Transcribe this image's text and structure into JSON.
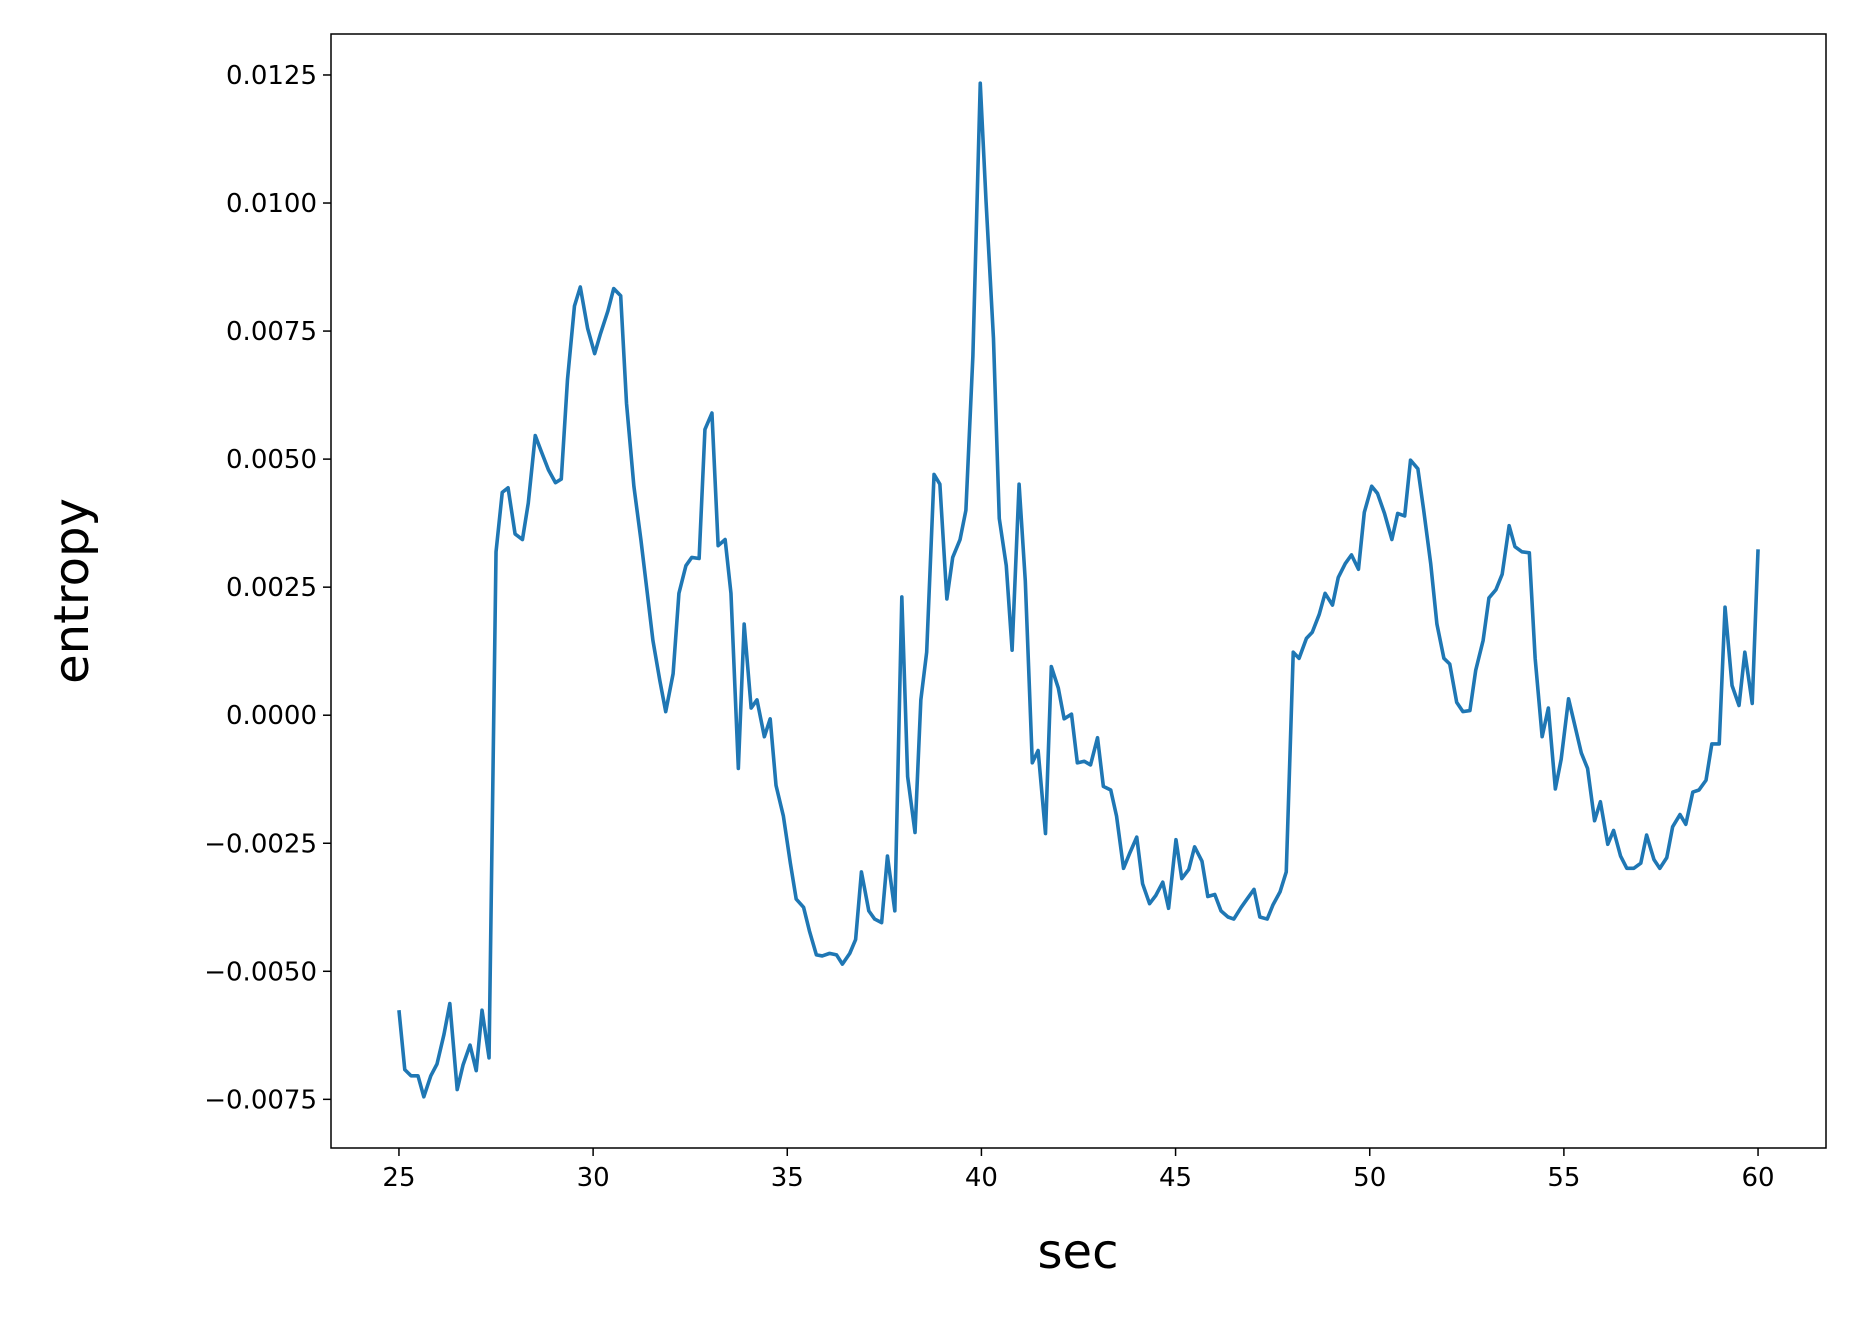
{
  "chart_data": {
    "type": "line",
    "x_label": "sec",
    "y_label": "entropy",
    "color": "#1f77b4",
    "xlim": [
      23.25,
      61.75
    ],
    "xticks": [
      25,
      30,
      35,
      40,
      45,
      50,
      55,
      60
    ],
    "ylim": [
      -0.00845,
      0.0133
    ],
    "yticks": [
      {
        "value": -0.0075,
        "label": "−0.0075"
      },
      {
        "value": -0.005,
        "label": "−0.0050"
      },
      {
        "value": -0.0025,
        "label": "−0.0025"
      },
      {
        "value": 0,
        "label": "0.0000"
      },
      {
        "value": 0.0025,
        "label": "0.0025"
      },
      {
        "value": 0.005,
        "label": "0.0050"
      },
      {
        "value": 0.0075,
        "label": "0.0075"
      },
      {
        "value": 0.01,
        "label": "0.0100"
      },
      {
        "value": 0.0125,
        "label": "0.0125"
      }
    ],
    "x": [
      25.0,
      25.15,
      25.31,
      25.49,
      25.64,
      25.82,
      25.98,
      26.16,
      26.31,
      26.5,
      26.65,
      26.83,
      26.99,
      27.14,
      27.32,
      27.5,
      27.66,
      27.81,
      27.99,
      28.18,
      28.33,
      28.51,
      28.67,
      28.85,
      29.03,
      29.18,
      29.34,
      29.52,
      29.67,
      29.86,
      30.04,
      30.19,
      30.38,
      30.53,
      30.71,
      30.86,
      31.05,
      31.23,
      31.38,
      31.54,
      31.72,
      31.87,
      32.06,
      32.21,
      32.39,
      32.54,
      32.73,
      32.88,
      33.06,
      33.22,
      33.4,
      33.55,
      33.74,
      33.89,
      34.07,
      34.22,
      34.41,
      34.56,
      34.71,
      34.9,
      35.08,
      35.23,
      35.42,
      35.57,
      35.75,
      35.9,
      36.09,
      36.27,
      36.42,
      36.61,
      36.76,
      36.91,
      37.1,
      37.25,
      37.43,
      37.58,
      37.77,
      37.95,
      38.1,
      38.29,
      38.44,
      38.59,
      38.78,
      38.93,
      39.11,
      39.26,
      39.45,
      39.6,
      39.78,
      39.97,
      40.12,
      40.31,
      40.46,
      40.64,
      40.79,
      40.97,
      41.13,
      41.31,
      41.46,
      41.65,
      41.8,
      41.98,
      42.13,
      42.32,
      42.47,
      42.65,
      42.81,
      42.99,
      43.14,
      43.33,
      43.48,
      43.66,
      43.81,
      44.0,
      44.15,
      44.33,
      44.49,
      44.67,
      44.82,
      45.01,
      45.16,
      45.34,
      45.49,
      45.68,
      45.83,
      46.01,
      46.17,
      46.35,
      46.5,
      46.69,
      46.84,
      47.02,
      47.17,
      47.36,
      47.51,
      47.69,
      47.85,
      48.03,
      48.18,
      48.37,
      48.52,
      48.7,
      48.85,
      49.04,
      49.19,
      49.37,
      49.53,
      49.71,
      49.86,
      50.05,
      50.2,
      50.38,
      50.57,
      50.72,
      50.9,
      51.05,
      51.24,
      51.39,
      51.57,
      51.73,
      51.91,
      52.06,
      52.24,
      52.4,
      52.58,
      52.73,
      52.92,
      53.07,
      53.25,
      53.41,
      53.59,
      53.74,
      53.92,
      54.11,
      54.26,
      54.44,
      54.6,
      54.78,
      54.93,
      55.12,
      55.27,
      55.45,
      55.61,
      55.79,
      55.94,
      56.13,
      56.28,
      56.46,
      56.62,
      56.8,
      56.98,
      57.13,
      57.32,
      57.47,
      57.65,
      57.8,
      57.99,
      58.14,
      58.32,
      58.48,
      58.66,
      58.81,
      59.0,
      59.15,
      59.33,
      59.51,
      59.66,
      59.85,
      60.0
    ],
    "values": [
      -0.00576,
      -0.00692,
      -0.00704,
      -0.00704,
      -0.00745,
      -0.00704,
      -0.00681,
      -0.00623,
      -0.00563,
      -0.00731,
      -0.00683,
      -0.00644,
      -0.00694,
      -0.00576,
      -0.00669,
      0.00319,
      0.00435,
      0.00444,
      0.00354,
      0.00343,
      0.00414,
      0.00546,
      0.00514,
      0.00479,
      0.00454,
      0.00461,
      0.00655,
      0.00799,
      0.00836,
      0.00755,
      0.00706,
      0.00745,
      0.00789,
      0.00833,
      0.00819,
      0.00609,
      0.00447,
      0.00343,
      0.00248,
      0.00146,
      0.00067,
      7e-05,
      0.00081,
      0.00238,
      0.00292,
      0.00308,
      0.00306,
      0.00558,
      0.0059,
      0.00331,
      0.00343,
      0.00238,
      -0.00104,
      0.00178,
      0.00014,
      0.0003,
      -0.00042,
      -7e-05,
      -0.00137,
      -0.00197,
      -0.00289,
      -0.00359,
      -0.00375,
      -0.00421,
      -0.00468,
      -0.0047,
      -0.00465,
      -0.00468,
      -0.00486,
      -0.00465,
      -0.00438,
      -0.00306,
      -0.00382,
      -0.00398,
      -0.00405,
      -0.00275,
      -0.00382,
      0.00231,
      -0.0012,
      -0.00229,
      0.0003,
      0.00123,
      0.0047,
      0.00451,
      0.00227,
      0.00308,
      0.00343,
      0.004,
      0.00701,
      0.01234,
      0.01002,
      0.00736,
      0.00384,
      0.00292,
      0.00127,
      0.00451,
      0.00262,
      -0.00093,
      -0.00069,
      -0.00231,
      0.00095,
      0.00053,
      -7e-05,
      2e-05,
      -0.00093,
      -0.0009,
      -0.00097,
      -0.00044,
      -0.00139,
      -0.00146,
      -0.00197,
      -0.00299,
      -0.00271,
      -0.00238,
      -0.00329,
      -0.00368,
      -0.00352,
      -0.00326,
      -0.00377,
      -0.00243,
      -0.00319,
      -0.00301,
      -0.00257,
      -0.00285,
      -0.00354,
      -0.0035,
      -0.00382,
      -0.00394,
      -0.00398,
      -0.00375,
      -0.00359,
      -0.0034,
      -0.00394,
      -0.00398,
      -0.0037,
      -0.00345,
      -0.00306,
      0.00123,
      0.00111,
      0.0015,
      0.00162,
      0.00197,
      0.00238,
      0.00215,
      0.00269,
      0.00296,
      0.00313,
      0.00285,
      0.00396,
      0.00447,
      0.00433,
      0.00394,
      0.00343,
      0.00394,
      0.00389,
      0.00498,
      0.00481,
      0.004,
      0.00296,
      0.00178,
      0.00111,
      0.001,
      0.00025,
      7e-05,
      9e-05,
      0.00088,
      0.00146,
      0.00229,
      0.00245,
      0.00275,
      0.0037,
      0.00329,
      0.00319,
      0.00317,
      0.00111,
      -0.00042,
      0.00014,
      -0.00144,
      -0.00086,
      0.00032,
      -0.00016,
      -0.00074,
      -0.00104,
      -0.00206,
      -0.00169,
      -0.00252,
      -0.00225,
      -0.00275,
      -0.00299,
      -0.00299,
      -0.00289,
      -0.00234,
      -0.00282,
      -0.00299,
      -0.00278,
      -0.00218,
      -0.00194,
      -0.00213,
      -0.0015,
      -0.00146,
      -0.00127,
      -0.00056,
      -0.00056,
      0.00211,
      0.00058,
      0.00019,
      0.00123,
      0.00023,
      0.00324
    ]
  }
}
